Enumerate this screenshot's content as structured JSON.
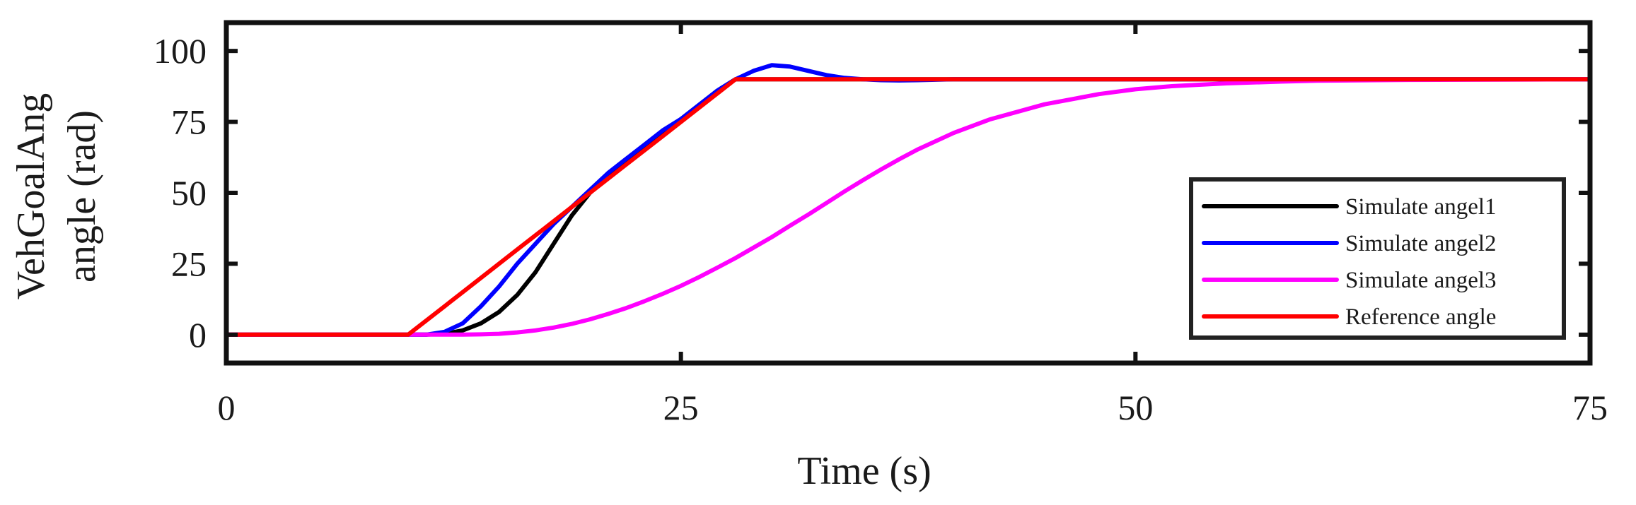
{
  "chart_data": {
    "type": "line",
    "xlabel": "Time (s)",
    "ylabel_lines": [
      "VehGoalAng",
      "angle (rad)"
    ],
    "xlim": [
      0,
      75
    ],
    "ylim": [
      -10,
      110
    ],
    "xticks": [
      0,
      25,
      50,
      75
    ],
    "yticks": [
      0,
      25,
      50,
      75,
      100
    ],
    "grid": false,
    "legend_position": "bottom-right",
    "x": [
      0,
      2,
      4,
      6,
      8,
      10,
      11,
      12,
      13,
      14,
      15,
      16,
      17,
      18,
      19,
      20,
      21,
      22,
      23,
      24,
      25,
      26,
      27,
      28,
      29,
      30,
      31,
      32,
      33,
      34,
      35,
      36,
      37,
      38,
      40,
      42,
      45,
      48,
      50,
      52,
      55,
      58,
      60,
      65,
      70,
      75
    ],
    "series": [
      {
        "name": "Simulate angel1",
        "color": "#000000",
        "values": [
          0,
          0,
          0,
          0,
          0,
          0,
          0,
          0.3,
          1.5,
          4,
          8,
          14,
          22,
          32,
          42,
          50,
          56,
          61,
          66,
          71,
          76,
          81,
          86,
          90,
          90,
          90,
          90,
          90,
          90,
          90,
          90,
          90,
          90,
          90,
          90,
          90,
          90,
          90,
          90,
          90,
          90,
          90,
          90,
          90,
          90,
          90
        ]
      },
      {
        "name": "Simulate angel2",
        "color": "#0000ff",
        "values": [
          0,
          0,
          0,
          0,
          0,
          0,
          0,
          1,
          4,
          10,
          17,
          25,
          32,
          39,
          45,
          51,
          57,
          62,
          67,
          72,
          76,
          81,
          86,
          90,
          93,
          95,
          94.5,
          93,
          91.5,
          90.5,
          90,
          89.7,
          89.6,
          89.7,
          90,
          90,
          90,
          90,
          90,
          90,
          90,
          90,
          90,
          90,
          90,
          90
        ]
      },
      {
        "name": "Simulate angel3",
        "color": "#ff00ff",
        "values": [
          0,
          0,
          0,
          0,
          0,
          0,
          0,
          0,
          0,
          0.1,
          0.3,
          0.8,
          1.5,
          2.5,
          3.8,
          5.4,
          7.3,
          9.4,
          11.8,
          14.4,
          17.2,
          20.3,
          23.6,
          27,
          30.7,
          34.4,
          38.4,
          42.3,
          46.4,
          50.5,
          54.4,
          58.2,
          61.8,
          65.2,
          71.1,
          75.9,
          81.2,
          84.8,
          86.5,
          87.6,
          88.6,
          89.2,
          89.5,
          89.8,
          89.9,
          90
        ]
      },
      {
        "name": "Reference angle",
        "color": "#ff0000",
        "values": [
          0,
          0,
          0,
          0,
          0,
          0,
          5,
          10,
          15,
          20,
          25,
          30,
          35,
          40,
          45,
          50,
          55,
          60,
          65,
          70,
          75,
          80,
          85,
          90,
          90,
          90,
          90,
          90,
          90,
          90,
          90,
          90,
          90,
          90,
          90,
          90,
          90,
          90,
          90,
          90,
          90,
          90,
          90,
          90,
          90,
          90
        ]
      }
    ]
  }
}
